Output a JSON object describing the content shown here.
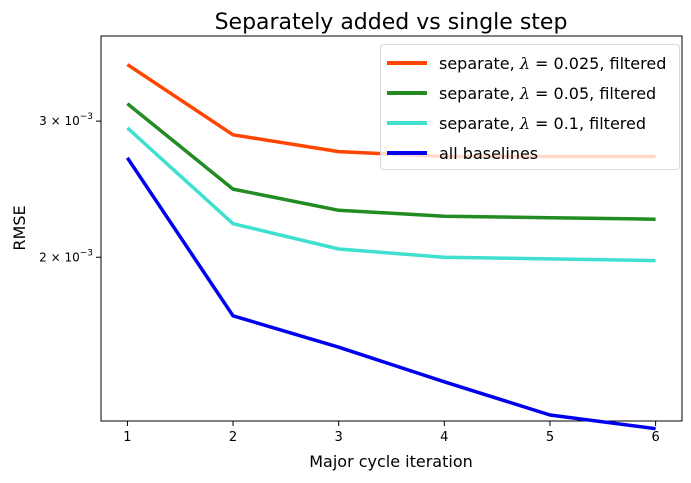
{
  "chart_data": {
    "type": "line",
    "title": "Separately added vs single step",
    "xlabel": "Major cycle iteration",
    "ylabel": "RMSE",
    "x": [
      1,
      2,
      3,
      4,
      5,
      6
    ],
    "xticks": [
      "1",
      "2",
      "3",
      "4",
      "5",
      "6"
    ],
    "xlim": [
      0.75,
      6.25
    ],
    "yscale": "log",
    "ylim": [
      0.001228,
      0.003866
    ],
    "yticks": [
      {
        "value": 0.003,
        "base": "3 × 10",
        "exp": "−3"
      },
      {
        "value": 0.002,
        "base": "2 × 10",
        "exp": "−3"
      }
    ],
    "legend_position": "upper right",
    "series": [
      {
        "name": "separate, λ = 0.025, filtered",
        "prefix": "separate, ",
        "lambda": "0.025",
        "suffix": ", filtered",
        "color": "#ff4500",
        "values": [
          0.00355,
          0.00288,
          0.00274,
          0.0027,
          0.0027,
          0.0027
        ]
      },
      {
        "name": "separate, λ = 0.05, filtered",
        "prefix": "separate, ",
        "lambda": "0.05",
        "suffix": ", filtered",
        "color": "#228b22",
        "values": [
          0.00316,
          0.00245,
          0.0023,
          0.00226,
          0.00225,
          0.00224
        ]
      },
      {
        "name": "separate, λ = 0.1, filtered",
        "prefix": "separate, ",
        "lambda": "0.1",
        "suffix": ", filtered",
        "color": "#40e0d0",
        "values": [
          0.00294,
          0.00221,
          0.00205,
          0.002,
          0.00199,
          0.00198
        ]
      },
      {
        "name": "all baselines",
        "prefix": "all baselines",
        "lambda": "",
        "suffix": "",
        "color": "#0000ee",
        "values": [
          0.00269,
          0.00168,
          0.00153,
          0.00138,
          0.00125,
          0.0012
        ]
      }
    ]
  }
}
